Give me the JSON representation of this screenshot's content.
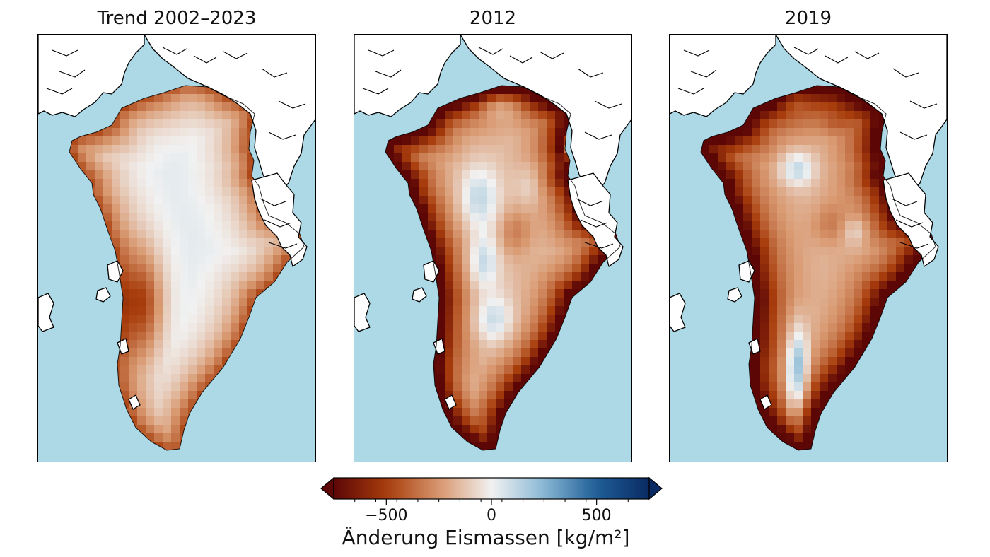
{
  "figure": {
    "panels": [
      {
        "title": "Trend 2002–2023",
        "pattern": "trend"
      },
      {
        "title": "2012",
        "pattern": "y2012"
      },
      {
        "title": "2019",
        "pattern": "y2019"
      }
    ],
    "background_color": "#add8e6",
    "land_color": "#ffffff",
    "coast_color": "#000000"
  },
  "colorbar": {
    "label": "Änderung Eismassen [kg/m²]",
    "ticks": [
      {
        "value": -500,
        "label": "−500"
      },
      {
        "value": 0,
        "label": "0"
      },
      {
        "value": 500,
        "label": "500"
      }
    ],
    "range": [
      -750,
      750
    ],
    "minor_tick_step": 100,
    "extend": "both",
    "colormap": "brown-white-blue (RdBu-like)",
    "colors": {
      "min": "#5c0606",
      "low": "#a83d0c",
      "mid_low": "#d99a72",
      "zero": "#f1f1f1",
      "mid_high": "#8dbbd6",
      "high": "#1f5f97",
      "max": "#0a2a63"
    }
  }
}
